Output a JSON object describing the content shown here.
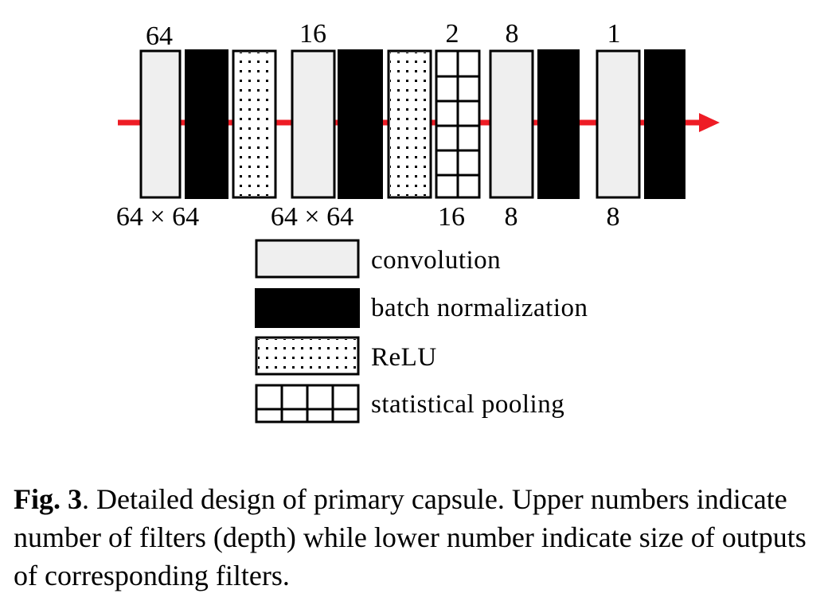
{
  "diagram": {
    "upper_labels": [
      "64",
      "16",
      "2",
      "8",
      "1"
    ],
    "lower_labels": [
      "64 × 64",
      "64 × 64",
      "16",
      "8",
      "8"
    ],
    "blocks": [
      "convolution",
      "batch normalization",
      "ReLU",
      "convolution",
      "batch normalization",
      "ReLU",
      "statistical pooling",
      "convolution",
      "batch normalization",
      "convolution",
      "batch normalization"
    ],
    "colors": {
      "arrow": "#ee1c25",
      "conv_fill": "#efefef",
      "bn_fill": "#000000"
    }
  },
  "legend": {
    "items": [
      {
        "key": "conv",
        "label": "convolution"
      },
      {
        "key": "bn",
        "label": "batch normalization"
      },
      {
        "key": "relu",
        "label": "ReLU"
      },
      {
        "key": "pool",
        "label": "statistical pooling"
      }
    ]
  },
  "caption": {
    "fig_label": "Fig. 3",
    "text": ".  Detailed design of primary capsule.  Upper numbers indicate number of filters (depth) while lower number indicate size of outputs of corresponding filters."
  }
}
